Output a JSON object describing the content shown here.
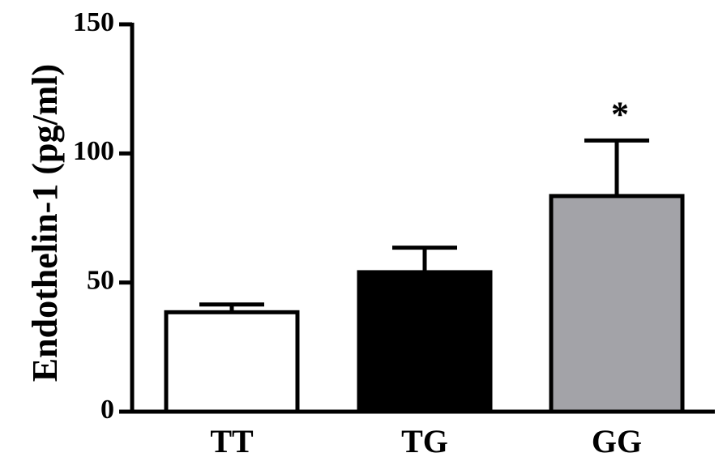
{
  "chart_data": {
    "type": "bar",
    "title": "",
    "xlabel": "",
    "ylabel": "Endothelin-1 (pg/ml)",
    "ylim": [
      0,
      150
    ],
    "yticks": [
      0,
      50,
      100,
      150
    ],
    "ytick_labels": [
      "0",
      "50",
      "100",
      "150"
    ],
    "categories": [
      "TT",
      "TG",
      "GG"
    ],
    "values": [
      38.5,
      54,
      83.5
    ],
    "error_upper": [
      41.5,
      63.5,
      105
    ],
    "bar_colors": [
      "#ffffff",
      "#000000",
      "#a3a3a8"
    ],
    "annotations": [
      "",
      "",
      "*"
    ],
    "grid": false
  }
}
